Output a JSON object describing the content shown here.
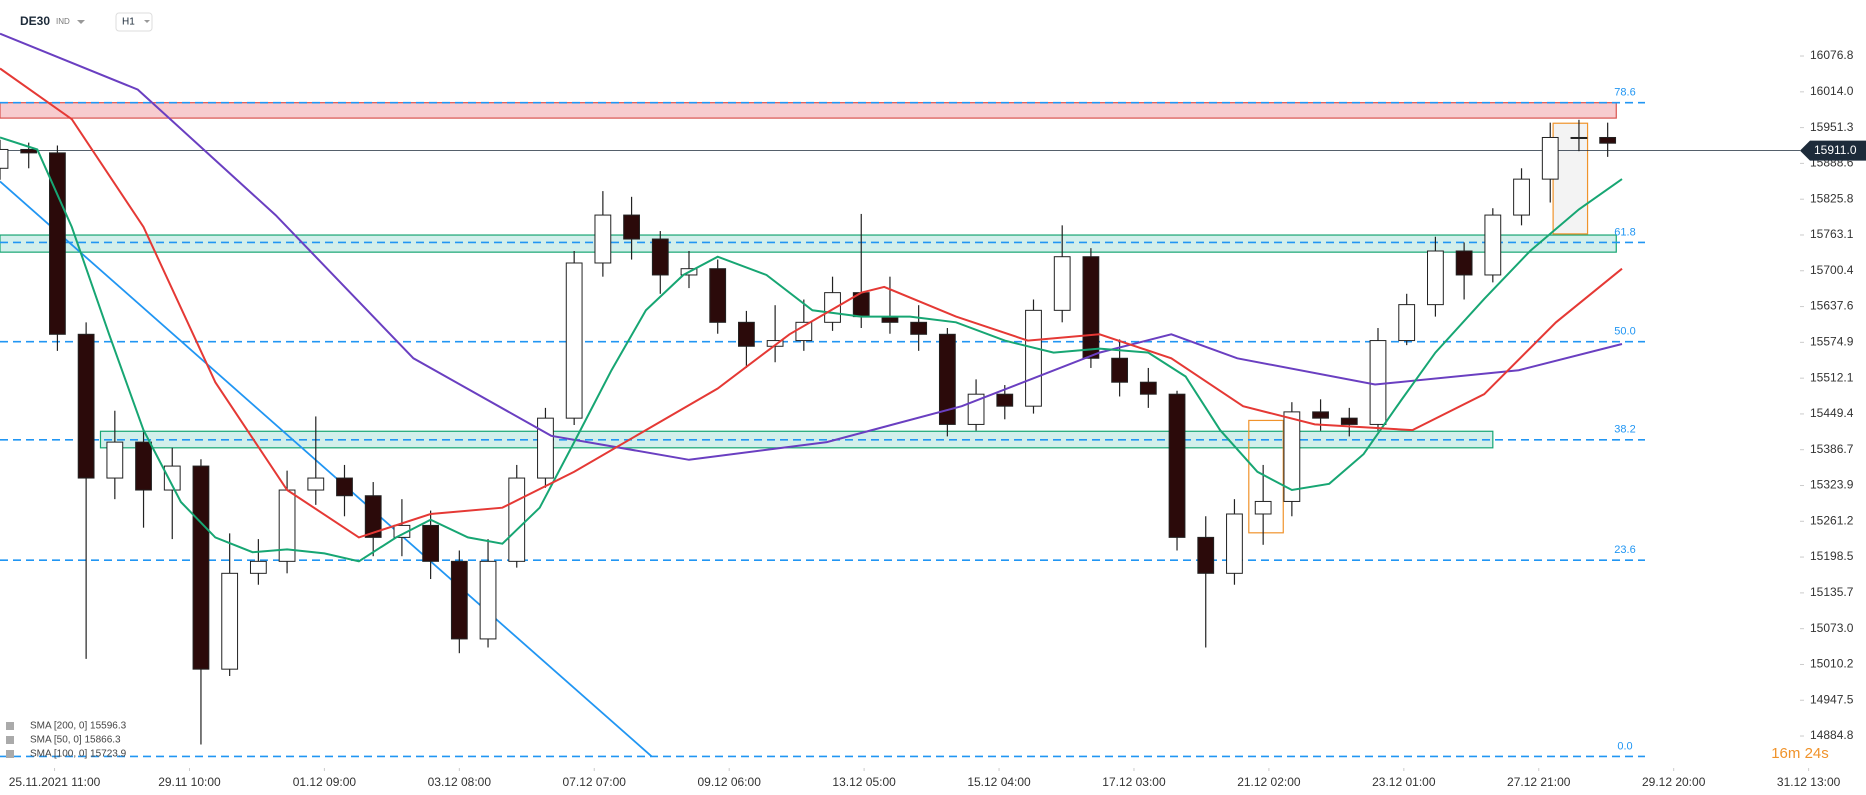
{
  "header": {
    "symbol": "DE30",
    "market": "IND",
    "timeframe": "H1"
  },
  "timer": "16m 24s",
  "chart_data": {
    "type": "candlestick",
    "x": [
      0,
      10,
      20,
      30,
      40,
      50,
      60,
      70,
      80,
      90,
      100,
      110,
      120,
      130,
      140,
      150,
      160,
      170,
      180,
      190,
      200,
      210,
      220,
      230,
      240,
      250,
      260,
      270,
      280,
      290,
      300,
      310,
      320,
      330,
      340,
      350,
      360,
      370,
      380,
      390,
      400,
      410,
      420,
      430,
      440,
      450,
      460,
      470,
      480,
      490,
      500,
      510,
      520,
      530,
      540,
      550,
      560
    ],
    "open": [
      15880,
      15913,
      15907,
      15589,
      15337,
      15400,
      15316,
      15358,
      15002,
      15170,
      15191,
      15316,
      15337,
      15306,
      15233,
      15254,
      15191,
      15055,
      15191,
      15337,
      15442,
      15714,
      15798,
      15756,
      15693,
      15704,
      15610,
      15568,
      15578,
      15610,
      15662,
      15620,
      15610,
      15589,
      15431,
      15484,
      15463,
      15631,
      15725,
      15547,
      15505,
      15484,
      15233,
      15170,
      15274,
      15296,
      15453,
      15442,
      15431,
      15578,
      15641,
      15735,
      15693,
      15798,
      15861,
      15934,
      15934
    ],
    "high": [
      15930,
      15925,
      15920,
      15610,
      15455,
      15420,
      15390,
      15370,
      15240,
      15230,
      15350,
      15445,
      15360,
      15330,
      15300,
      15280,
      15210,
      15230,
      15360,
      15460,
      15735,
      15840,
      15830,
      15770,
      15735,
      15720,
      15630,
      15640,
      15650,
      15690,
      15800,
      15690,
      15640,
      15600,
      15510,
      15500,
      15650,
      15780,
      15740,
      15580,
      15530,
      15490,
      15270,
      15300,
      15360,
      15470,
      15475,
      15460,
      15600,
      15660,
      15760,
      15750,
      15810,
      15880,
      15960,
      15965,
      15960
    ],
    "low": [
      15860,
      15880,
      15560,
      15020,
      15300,
      15250,
      15230,
      14870,
      14990,
      15150,
      15170,
      15290,
      15270,
      15200,
      15200,
      15160,
      15030,
      15040,
      15180,
      15320,
      15430,
      15690,
      15720,
      15660,
      15670,
      15590,
      15530,
      15540,
      15560,
      15595,
      15600,
      15590,
      15560,
      15410,
      15420,
      15440,
      15450,
      15610,
      15530,
      15480,
      15460,
      15210,
      15040,
      15150,
      15220,
      15270,
      15420,
      15410,
      15420,
      15570,
      15620,
      15650,
      15680,
      15780,
      15820,
      15910,
      15900
    ],
    "close": [
      15913,
      15907,
      15589,
      15337,
      15400,
      15316,
      15358,
      15002,
      15170,
      15191,
      15316,
      15337,
      15306,
      15233,
      15254,
      15191,
      15055,
      15191,
      15337,
      15442,
      15714,
      15798,
      15756,
      15693,
      15704,
      15610,
      15568,
      15578,
      15610,
      15662,
      15620,
      15610,
      15589,
      15431,
      15484,
      15463,
      15631,
      15725,
      15547,
      15505,
      15484,
      15233,
      15170,
      15274,
      15296,
      15453,
      15442,
      15431,
      15578,
      15641,
      15735,
      15693,
      15798,
      15861,
      15934,
      15934,
      15924
    ],
    "up_color": "#ffffff",
    "down_color": "#2b0a0a",
    "series": [
      {
        "name": "SMA [200, 0] 15596.3",
        "color": "#6a3fc1",
        "x": [
          0,
          48,
          96,
          144,
          192,
          240,
          288,
          335,
          383,
          408,
          431,
          479,
          529,
          565
        ],
        "values": [
          16116,
          16018,
          15798,
          15547,
          15411,
          15369,
          15400,
          15463,
          15557,
          15589,
          15547,
          15501,
          15526,
          15572
        ]
      },
      {
        "name": "SMA [50, 0] 15866.3",
        "color": "#17a673",
        "x": [
          0,
          13,
          25,
          38,
          50,
          63,
          75,
          88,
          100,
          113,
          125,
          138,
          150,
          163,
          175,
          188,
          200,
          213,
          225,
          238,
          250,
          267,
          283,
          300,
          317,
          333,
          350,
          367,
          383,
          400,
          413,
          425,
          438,
          450,
          463,
          475,
          488,
          500,
          517,
          533,
          550,
          565
        ],
        "values": [
          15934,
          15913,
          15777,
          15589,
          15421,
          15295,
          15233,
          15207,
          15212,
          15205,
          15191,
          15233,
          15264,
          15233,
          15222,
          15285,
          15400,
          15526,
          15631,
          15693,
          15725,
          15693,
          15631,
          15620,
          15620,
          15610,
          15578,
          15557,
          15564,
          15557,
          15515,
          15421,
          15348,
          15316,
          15327,
          15379,
          15473,
          15557,
          15651,
          15735,
          15808,
          15861
        ]
      },
      {
        "name": "SMA [100, 0] 15723.9",
        "color": "#e53935",
        "x": [
          0,
          25,
          50,
          75,
          100,
          125,
          150,
          175,
          200,
          225,
          250,
          275,
          300,
          308,
          333,
          358,
          383,
          408,
          433,
          458,
          492,
          517,
          542,
          565
        ],
        "values": [
          16055,
          15966,
          15777,
          15505,
          15316,
          15233,
          15274,
          15285,
          15348,
          15421,
          15494,
          15589,
          15662,
          15672,
          15620,
          15578,
          15589,
          15547,
          15463,
          15431,
          15421,
          15484,
          15610,
          15704
        ]
      }
    ],
    "fib_levels": [
      {
        "label": "78.6",
        "value": 15995
      },
      {
        "label": "61.8",
        "value": 15750
      },
      {
        "label": "50.0",
        "value": 15576
      },
      {
        "label": "38.2",
        "value": 15404
      },
      {
        "label": "23.6",
        "value": 15193
      },
      {
        "label": "0.0",
        "value": 14849
      }
    ],
    "fib_color": "#2196f3",
    "zones": [
      {
        "color": "#f4b6bb",
        "stroke": "#d9534f",
        "x": [
          0,
          563
        ],
        "y": [
          15968,
          15995
        ]
      },
      {
        "color": "#bfe8e2",
        "stroke": "#17a673",
        "x": [
          0,
          563
        ],
        "y": [
          15733,
          15763
        ]
      },
      {
        "color": "#bfe8e2",
        "stroke": "#17a673",
        "x": [
          35,
          520
        ],
        "y": [
          15390,
          15419
        ]
      },
      {
        "color": "none",
        "stroke": "#f0932b",
        "x": [
          435,
          447
        ],
        "y": [
          15241,
          15438
        ]
      },
      {
        "color": "#eeeeee",
        "stroke": "#f0932b",
        "x": [
          541,
          553
        ],
        "y": [
          15765,
          15959
        ]
      }
    ],
    "trendline": {
      "color": "#2196f3",
      "x": [
        0,
        227
      ],
      "y": [
        15857,
        14849
      ]
    },
    "current_price": {
      "value": 15911,
      "label": "15911.0"
    },
    "xlim": [
      0,
      627
    ],
    "ylim": [
      14834,
      16175
    ],
    "xticks": [
      {
        "value": 19,
        "label": "25.11.2021 11:00"
      },
      {
        "value": 66,
        "label": "29.11 10:00"
      },
      {
        "value": 113,
        "label": "01.12 09:00"
      },
      {
        "value": 160,
        "label": "03.12 08:00"
      },
      {
        "value": 207,
        "label": "07.12 07:00"
      },
      {
        "value": 254,
        "label": "09.12 06:00"
      },
      {
        "value": 301,
        "label": "13.12 05:00"
      },
      {
        "value": 348,
        "label": "15.12 04:00"
      },
      {
        "value": 395,
        "label": "17.12 03:00"
      },
      {
        "value": 442,
        "label": "21.12 02:00"
      },
      {
        "value": 489,
        "label": "23.12 01:00"
      },
      {
        "value": 536,
        "label": "27.12 21:00"
      },
      {
        "value": 583,
        "label": "29.12 20:00"
      },
      {
        "value": 630,
        "label": "31.12 13:00"
      }
    ],
    "yticks": [
      {
        "value": 16076.8,
        "label": "16076.8"
      },
      {
        "value": 16014,
        "label": "16014.0"
      },
      {
        "value": 15951.3,
        "label": "15951.3"
      },
      {
        "value": 15888.6,
        "label": "15888.6"
      },
      {
        "value": 15825.8,
        "label": "15825.8"
      },
      {
        "value": 15763.1,
        "label": "15763.1"
      },
      {
        "value": 15700.4,
        "label": "15700.4"
      },
      {
        "value": 15637.6,
        "label": "15637.6"
      },
      {
        "value": 15574.9,
        "label": "15574.9"
      },
      {
        "value": 15512.1,
        "label": "15512.1"
      },
      {
        "value": 15449.4,
        "label": "15449.4"
      },
      {
        "value": 15386.7,
        "label": "15386.7"
      },
      {
        "value": 15323.9,
        "label": "15323.9"
      },
      {
        "value": 15261.2,
        "label": "15261.2"
      },
      {
        "value": 15198.5,
        "label": "15198.5"
      },
      {
        "value": 15135.7,
        "label": "15135.7"
      },
      {
        "value": 15073,
        "label": "15073.0"
      },
      {
        "value": 15010.2,
        "label": "15010.2"
      },
      {
        "value": 14947.5,
        "label": "14947.5"
      },
      {
        "value": 14884.8,
        "label": "14884.8"
      }
    ]
  }
}
